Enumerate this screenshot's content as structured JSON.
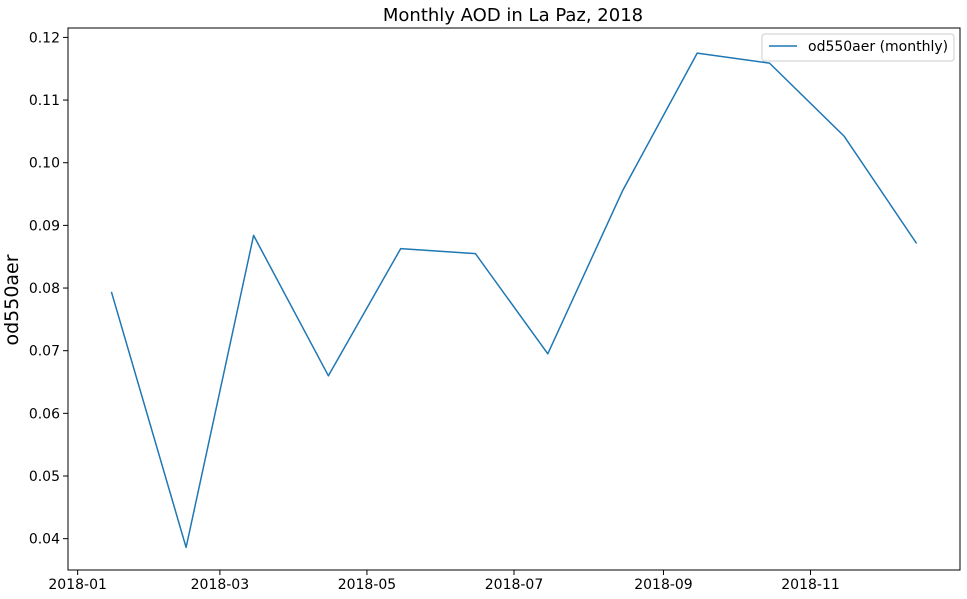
{
  "chart_data": {
    "type": "line",
    "title": "Monthly AOD in La Paz, 2018",
    "xlabel": "",
    "ylabel": "od550aer",
    "x": [
      "2018-01-15",
      "2018-02-15",
      "2018-03-15",
      "2018-04-15",
      "2018-05-15",
      "2018-06-15",
      "2018-07-15",
      "2018-08-15",
      "2018-09-15",
      "2018-10-15",
      "2018-11-15",
      "2018-12-15"
    ],
    "series": [
      {
        "name": "od550aer (monthly)",
        "color": "#1f77b4",
        "values": [
          0.0794,
          0.0386,
          0.0884,
          0.066,
          0.0863,
          0.0855,
          0.0695,
          0.0955,
          0.1175,
          0.1159,
          0.1042,
          0.0871
        ]
      }
    ],
    "xlim": [
      "2017-12-28",
      "2019-01-02"
    ],
    "ylim": [
      0.035,
      0.1215
    ],
    "x_ticks": [
      "2018-01-01",
      "2018-03-01",
      "2018-05-01",
      "2018-07-01",
      "2018-09-01",
      "2018-11-01"
    ],
    "x_tick_labels": [
      "2018-01",
      "2018-03",
      "2018-05",
      "2018-07",
      "2018-09",
      "2018-11"
    ],
    "y_ticks": [
      0.04,
      0.05,
      0.06,
      0.07,
      0.08,
      0.09,
      0.1,
      0.11,
      0.12
    ],
    "y_tick_labels": [
      "0.04",
      "0.05",
      "0.06",
      "0.07",
      "0.08",
      "0.09",
      "0.10",
      "0.11",
      "0.12"
    ],
    "grid": false,
    "legend_position": "top-right"
  }
}
